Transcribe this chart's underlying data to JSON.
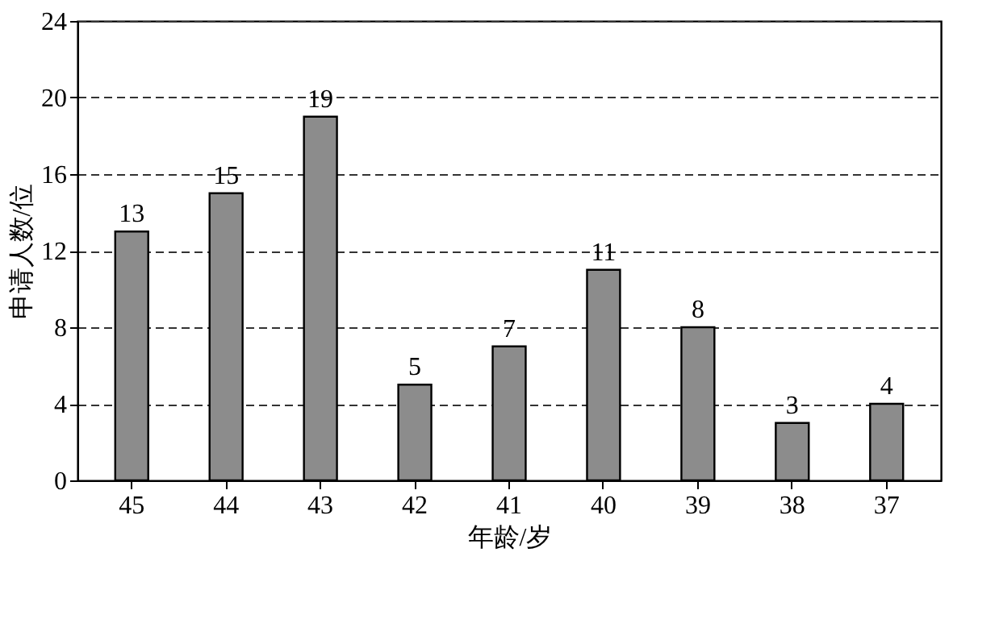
{
  "chart_data": {
    "type": "bar",
    "xlabel": "年龄/岁",
    "ylabel": "申请人数/位",
    "categories": [
      "45",
      "44",
      "43",
      "42",
      "41",
      "40",
      "39",
      "38",
      "37"
    ],
    "values": [
      13,
      15,
      19,
      5,
      7,
      11,
      8,
      3,
      4
    ],
    "color": "#8c8c8c",
    "ylim": [
      0,
      24
    ],
    "yticks": [
      0,
      4,
      8,
      12,
      16,
      20,
      24
    ],
    "grid": "y",
    "data_labels": true
  }
}
